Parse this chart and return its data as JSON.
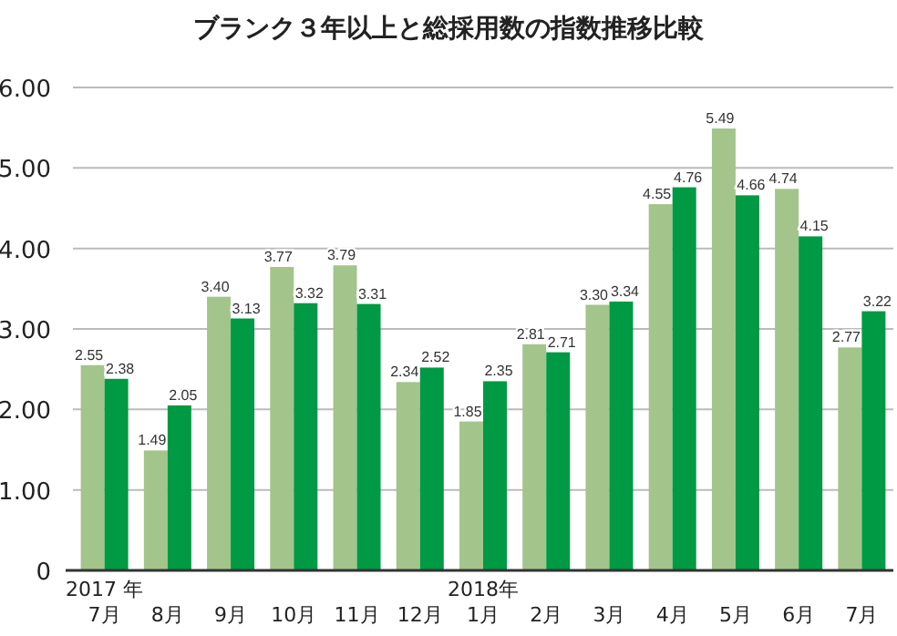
{
  "chart_data": {
    "type": "bar",
    "title": "ブランク３年以上と総採用数の指数推移比較",
    "categories": [
      "2017 年\n7月",
      "8月",
      "9月",
      "10月",
      "11月",
      "12月",
      "2018年\n1月",
      "2月",
      "3月",
      "4月",
      "5月",
      "6月",
      "7月"
    ],
    "series": [
      {
        "color": "#a3c48a",
        "values": [
          2.55,
          1.49,
          3.4,
          3.77,
          3.79,
          2.34,
          1.85,
          2.81,
          3.3,
          4.55,
          5.49,
          4.74,
          2.77
        ],
        "value_labels": [
          "2.55",
          "1.49",
          "3.40",
          "3.77",
          "3.79",
          "2.34",
          "1.85",
          "2.81",
          "3.30",
          "4.55",
          "5.49",
          "4.74",
          "2.77"
        ]
      },
      {
        "color": "#009944",
        "values": [
          2.38,
          2.05,
          3.13,
          3.32,
          3.31,
          2.52,
          2.35,
          2.71,
          3.34,
          4.76,
          4.66,
          4.15,
          3.22
        ],
        "value_labels": [
          "2.38",
          "2.05",
          "3.13",
          "3.32",
          "3.31",
          "2.52",
          "2.35",
          "2.71",
          "3.34",
          "4.76",
          "4.66",
          "4.15",
          "3.22"
        ]
      }
    ],
    "ylim": [
      0,
      6
    ],
    "yticks": [
      0,
      {
        "value": 1,
        "label": "1.00"
      },
      {
        "value": 2,
        "label": "2.00"
      },
      {
        "value": 3,
        "label": "3.00"
      },
      {
        "value": 4,
        "label": "4.00"
      },
      {
        "value": 5,
        "label": "5.00"
      },
      {
        "value": 6,
        "label": "6.00"
      }
    ],
    "grid": "y"
  }
}
